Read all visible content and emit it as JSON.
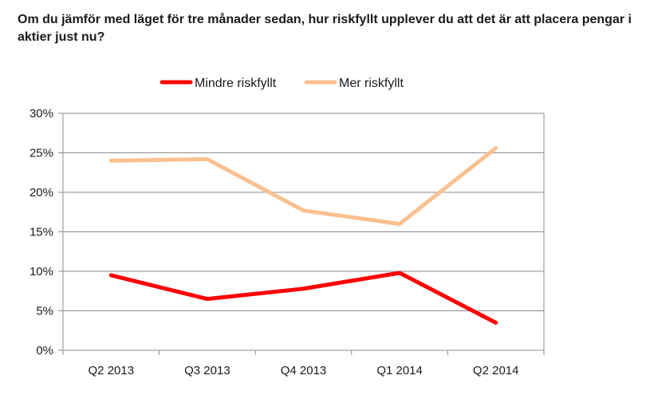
{
  "chart_data": {
    "type": "line",
    "title": "Om du jämför med läget för tre månader sedan, hur riskfyllt upplever du att det är att placera pengar i aktier just nu?",
    "categories": [
      "Q2 2013",
      "Q3 2013",
      "Q4 2013",
      "Q1 2014",
      "Q2 2014"
    ],
    "y_ticks": [
      "0%",
      "5%",
      "10%",
      "15%",
      "20%",
      "25%",
      "30%"
    ],
    "ylim": [
      0,
      30
    ],
    "grid": true,
    "legend_position": "top",
    "series": [
      {
        "name": "Mindre riskfyllt",
        "color": "#ff0000",
        "values": [
          9.5,
          6.5,
          7.8,
          9.8,
          3.5
        ]
      },
      {
        "name": "Mer riskfyllt",
        "color": "#fac090",
        "values": [
          24.0,
          24.2,
          17.7,
          16.0,
          25.6
        ]
      }
    ]
  }
}
